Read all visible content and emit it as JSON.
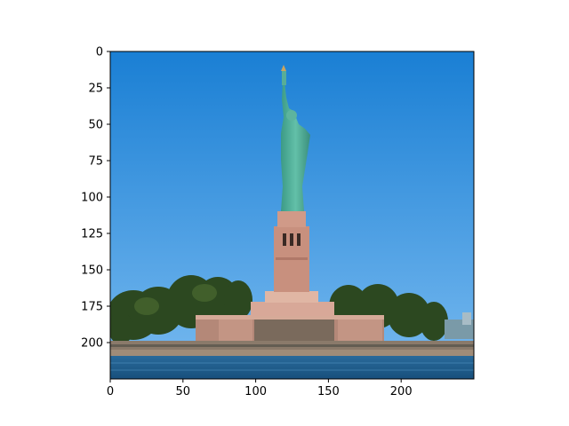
{
  "chart_data": {
    "type": "image",
    "image_content": "statue-of-liberty-photo",
    "xlim": [
      0,
      250
    ],
    "ylim": [
      225,
      0
    ],
    "x_ticks": [
      "0",
      "50",
      "100",
      "150",
      "200"
    ],
    "y_ticks": [
      "0",
      "25",
      "50",
      "75",
      "100",
      "125",
      "150",
      "175",
      "200"
    ],
    "grid": false,
    "colors": {
      "sky_top": "#1a7fd4",
      "sky_bottom": "#6fb4ee",
      "statue": "#4fae98",
      "pedestal": "#c89484",
      "trees": "#2f4a22",
      "water": "#1a5a8a"
    }
  }
}
